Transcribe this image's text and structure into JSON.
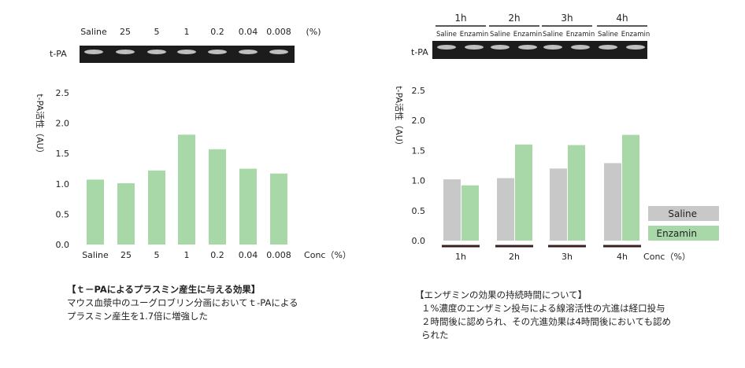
{
  "colors": {
    "saline": "#c8c8c8",
    "enzamin": "#a8d8a8",
    "gel_bg": "#1c1c1c",
    "gel_band": "#e8e8e8",
    "axis_line": "#3a2020"
  },
  "left_gel": {
    "row_label": "t-PA",
    "lane_labels": [
      "Saline",
      "25",
      "5",
      "1",
      "0.2",
      "0.04",
      "0.008"
    ],
    "unit": "(%)"
  },
  "right_gel": {
    "row_label": "t-PA",
    "time_labels": [
      "1h",
      "2h",
      "3h",
      "4h"
    ],
    "lane_labels": [
      "Saline",
      "Enzamin",
      "Saline",
      "Enzamin",
      "Saline",
      "Enzamin",
      "Saline",
      "Enzamin"
    ]
  },
  "chart_data": [
    {
      "type": "bar",
      "ylabel": "t-PA活性（AU）",
      "xlabel": "Conc（%）",
      "categories": [
        "Saline",
        "25",
        "5",
        "1",
        "0.2",
        "0.04",
        "0.008"
      ],
      "values": [
        1.07,
        1.01,
        1.22,
        1.81,
        1.57,
        1.25,
        1.17
      ],
      "ylim": [
        0,
        2.5
      ],
      "yticks": [
        "0.0",
        "0.5",
        "1.0",
        "1.5",
        "2.0",
        "2.5"
      ],
      "grid": false,
      "color": "#a8d8a8"
    },
    {
      "type": "bar",
      "ylabel": "t-PA活性（AU）",
      "xlabel": "Conc（%）",
      "categories": [
        "1h",
        "2h",
        "3h",
        "4h"
      ],
      "series": [
        {
          "name": "Saline",
          "values": [
            1.02,
            1.04,
            1.2,
            1.29
          ],
          "color": "#c8c8c8"
        },
        {
          "name": "Enzamin",
          "values": [
            0.92,
            1.6,
            1.59,
            1.76
          ],
          "color": "#a8d8a8"
        }
      ],
      "ylim": [
        0,
        2.5
      ],
      "yticks": [
        "0.0",
        "0.5",
        "1.0",
        "1.5",
        "2.0",
        "2.5"
      ],
      "grid": false,
      "legend_position": "bottom-right"
    }
  ],
  "left_caption": {
    "title": "【ｔ－PAによるプラスミン産生に与える効果】",
    "lines": [
      "マウス血漿中のユーグロブリン分画においてｔ-PAによる",
      "プラスミン産生を1.7倍に増強した"
    ]
  },
  "right_caption": {
    "title": "【エンザミンの効果の持続時間について】",
    "lines": [
      "１%濃度のエンザミン投与による線溶活性の亢進は経口投与",
      "２時間後に認められ、その亢進効果は4時間後においても認め",
      "られた"
    ]
  }
}
